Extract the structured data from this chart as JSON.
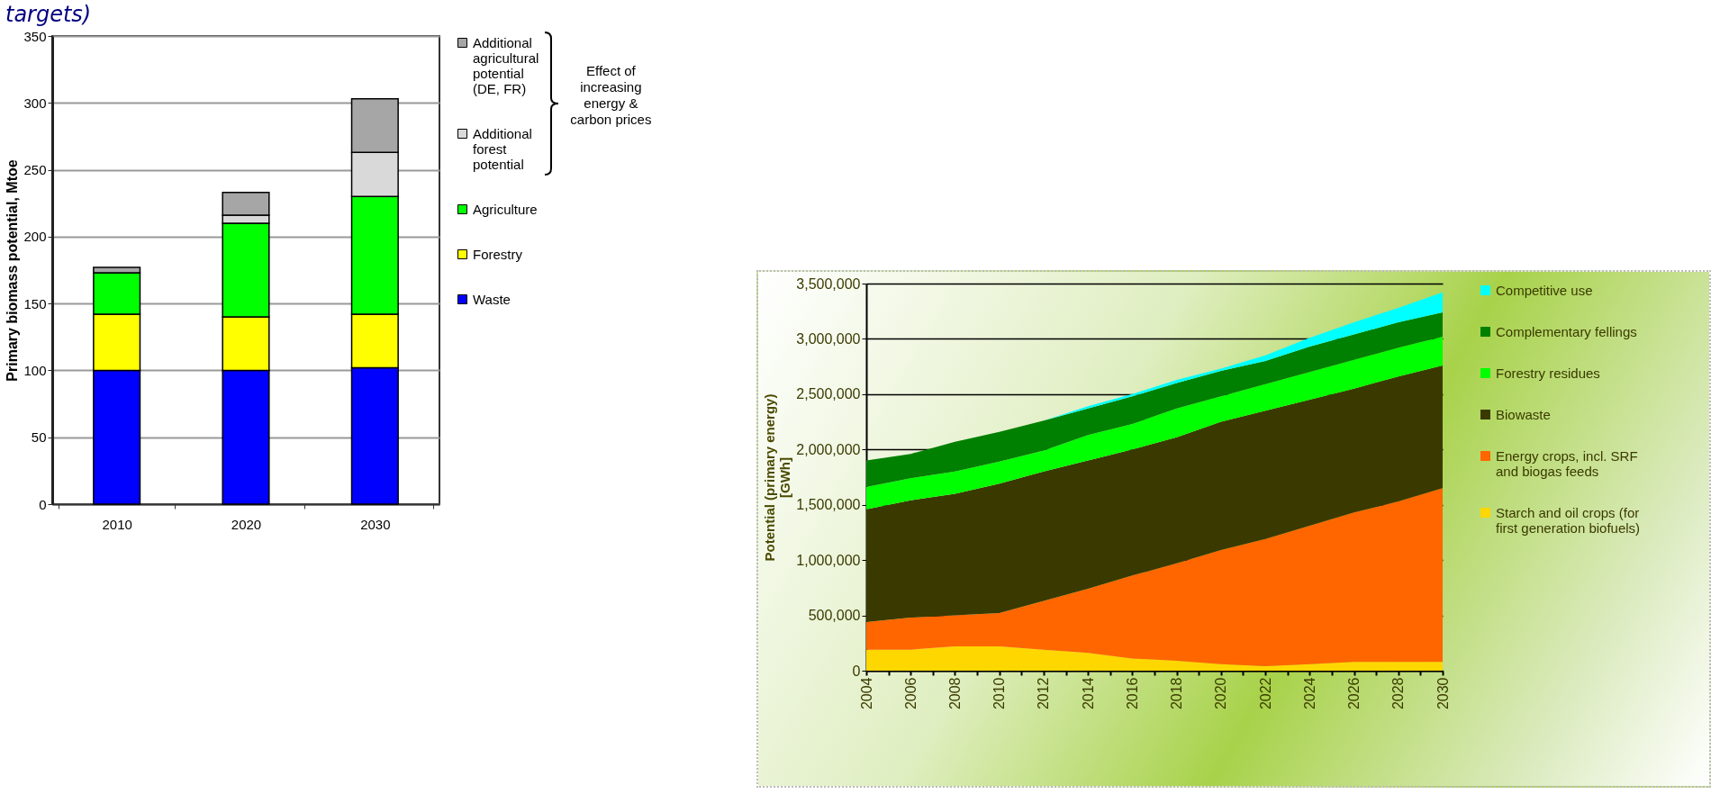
{
  "chart_data": [
    {
      "type": "bar",
      "title": "targets)",
      "ylabel": "Primary biomass potential, Mtoe",
      "categories": [
        "2010",
        "2020",
        "2030"
      ],
      "stacked": true,
      "ylim": [
        0,
        350
      ],
      "yticks": [
        0,
        50,
        100,
        150,
        200,
        250,
        300,
        350
      ],
      "grid": "y",
      "legend": "right",
      "annotations": [
        "Effect of increasing energy & carbon prices"
      ],
      "series": [
        {
          "name": "Waste",
          "color": "#0000ff",
          "values": [
            100,
            100,
            102
          ]
        },
        {
          "name": "Forestry",
          "color": "#ffff00",
          "values": [
            42,
            40,
            40
          ]
        },
        {
          "name": "Agriculture",
          "color": "#00ff00",
          "values": [
            31,
            70,
            88
          ]
        },
        {
          "name": "Additional forest potential",
          "color": "#d9d9d9",
          "values": [
            null,
            6,
            33
          ]
        },
        {
          "name": "Additional agricultural potential (DE, FR)",
          "color": "#a6a6a6",
          "values": [
            4,
            17,
            40
          ]
        }
      ]
    },
    {
      "type": "area",
      "ylabel": "Potential (primary energy) [GWh]",
      "x": [
        2004,
        2006,
        2008,
        2010,
        2012,
        2014,
        2016,
        2018,
        2020,
        2022,
        2024,
        2026,
        2028,
        2030
      ],
      "stacked": true,
      "xlim": [
        2004,
        2030
      ],
      "xticks": [
        2004,
        {
          "value": 2005,
          "label": null
        },
        2006,
        {
          "value": 2007,
          "label": null
        },
        2008,
        {
          "value": 2009,
          "label": null
        },
        2010,
        {
          "value": 2011,
          "label": null
        },
        2012,
        {
          "value": 2013,
          "label": null
        },
        2014,
        {
          "value": 2015,
          "label": null
        },
        2016,
        {
          "value": 2017,
          "label": null
        },
        2018,
        {
          "value": 2019,
          "label": null
        },
        2020,
        {
          "value": 2021,
          "label": null
        },
        2022,
        {
          "value": 2023,
          "label": null
        },
        2024,
        {
          "value": 2025,
          "label": null
        },
        2026,
        {
          "value": 2027,
          "label": null
        },
        2028,
        {
          "value": 2029,
          "label": null
        },
        2030
      ],
      "ylim": [
        0,
        3500000
      ],
      "yticks": [
        0,
        {
          "value": 500000,
          "label": "500,000"
        },
        {
          "value": 1000000,
          "label": "1,000,000"
        },
        {
          "value": 1500000,
          "label": "1,500,000"
        },
        {
          "value": 2000000,
          "label": "2,000,000"
        },
        {
          "value": 2500000,
          "label": "2,500,000"
        },
        {
          "value": 3000000,
          "label": "3,000,000"
        },
        {
          "value": 3500000,
          "label": "3,500,000"
        }
      ],
      "grid": "y",
      "legend": "right",
      "series": [
        {
          "name": "Starch and oil crops (for first generation biofuels)",
          "color": "#ffd700",
          "values": [
            190000,
            190000,
            220000,
            220000,
            190000,
            160000,
            110000,
            90000,
            60000,
            40000,
            60000,
            80000,
            80000,
            80000
          ]
        },
        {
          "name": "Energy crops, incl. SRF and biogas feeds",
          "color": "#ff6600",
          "values": [
            250000,
            290000,
            280000,
            300000,
            440000,
            580000,
            750000,
            880000,
            1030000,
            1150000,
            1250000,
            1350000,
            1450000,
            1570000
          ]
        },
        {
          "name": "Biowaste",
          "color": "#3a3a00",
          "values": [
            1020000,
            1060000,
            1100000,
            1170000,
            1170000,
            1160000,
            1140000,
            1140000,
            1160000,
            1160000,
            1140000,
            1120000,
            1130000,
            1110000
          ]
        },
        {
          "name": "Forestry residues",
          "color": "#00ff00",
          "values": [
            200000,
            200000,
            200000,
            200000,
            190000,
            230000,
            230000,
            260000,
            230000,
            240000,
            250000,
            260000,
            260000,
            260000
          ]
        },
        {
          "name": "Complementary fellings",
          "color": "#008000",
          "values": [
            240000,
            220000,
            270000,
            270000,
            270000,
            240000,
            250000,
            230000,
            230000,
            210000,
            230000,
            230000,
            230000,
            220000
          ]
        },
        {
          "name": "Competitive use",
          "color": "#00ffff",
          "values": [
            0,
            0,
            0,
            0,
            0,
            20000,
            20000,
            30000,
            20000,
            50000,
            80000,
            110000,
            130000,
            180000
          ]
        }
      ]
    }
  ]
}
